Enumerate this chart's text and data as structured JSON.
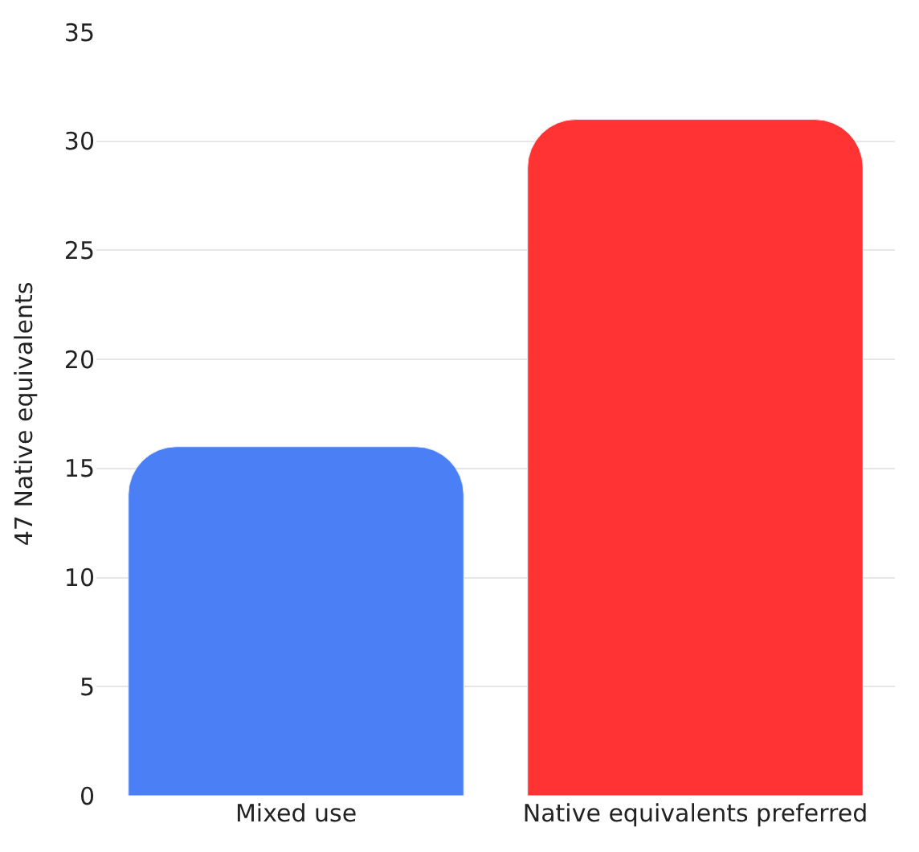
{
  "chart_data": {
    "type": "bar",
    "ylabel": "47 Native equivalents",
    "categories": [
      "Mixed use",
      "Native equivalents preferred"
    ],
    "values": [
      16,
      31
    ],
    "colors": [
      "#4a7ff6",
      "#ff3333"
    ],
    "ylim": [
      0,
      35
    ],
    "yticks": [
      0,
      5,
      10,
      15,
      20,
      25,
      30,
      35
    ],
    "grid": "y"
  }
}
